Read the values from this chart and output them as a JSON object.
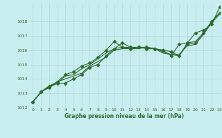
{
  "title": "Graphe pression niveau de la mer (hPa)",
  "background_color": "#c8eef0",
  "grid_color": "#b8dce0",
  "line_color": "#2d6a2d",
  "xlim": [
    -0.5,
    23
  ],
  "ylim": [
    1012,
    1019.2
  ],
  "yticks": [
    1012,
    1013,
    1014,
    1015,
    1016,
    1017,
    1018
  ],
  "xticks": [
    0,
    1,
    2,
    3,
    4,
    5,
    6,
    7,
    8,
    9,
    10,
    11,
    12,
    13,
    14,
    15,
    16,
    17,
    18,
    19,
    20,
    21,
    22,
    23
  ],
  "series": [
    [
      1012.4,
      1013.1,
      1013.4,
      1013.7,
      1013.7,
      1014.0,
      1014.3,
      1014.8,
      1015.0,
      1015.6,
      1016.1,
      1016.5,
      1016.2,
      1016.2,
      1016.2,
      1016.1,
      1016.0,
      1015.9,
      1015.6,
      1016.4,
      1016.5,
      1017.2,
      1018.0,
      1018.6
    ],
    [
      1012.4,
      1013.1,
      1013.4,
      1013.8,
      1014.0,
      1014.2,
      1014.4,
      1014.9,
      1015.2,
      1015.5,
      1016.0,
      1016.1,
      1016.1,
      1016.1,
      1016.2,
      1016.1,
      1015.9,
      1015.7,
      1015.7,
      1016.3,
      1016.4,
      1017.1,
      1017.9,
      1018.5
    ],
    [
      1012.4,
      1013.1,
      1013.5,
      1013.7,
      1014.2,
      1014.3,
      1014.7,
      1015.0,
      1015.4,
      1015.8,
      1016.1,
      1016.2,
      1016.2,
      1016.2,
      1016.2,
      1016.1,
      1015.8,
      1015.7,
      1015.6,
      1016.5,
      1016.6,
      1017.2,
      1018.0,
      1018.6
    ],
    [
      1012.4,
      1013.1,
      1013.5,
      1013.8,
      1014.3,
      1014.5,
      1014.9,
      1015.1,
      1015.5,
      1016.0,
      1016.6,
      1016.2,
      1016.1,
      1016.2,
      1016.1,
      1016.1,
      1016.0,
      1015.6,
      1016.4,
      1016.5,
      1017.2,
      1017.4,
      1017.8,
      1019.0
    ]
  ],
  "marker_indices": [
    0,
    3
  ],
  "marker": "D",
  "marker_size": 2.5,
  "linewidth": 0.8,
  "xlabel_fontsize": 5.5,
  "tick_fontsize": 4.5
}
